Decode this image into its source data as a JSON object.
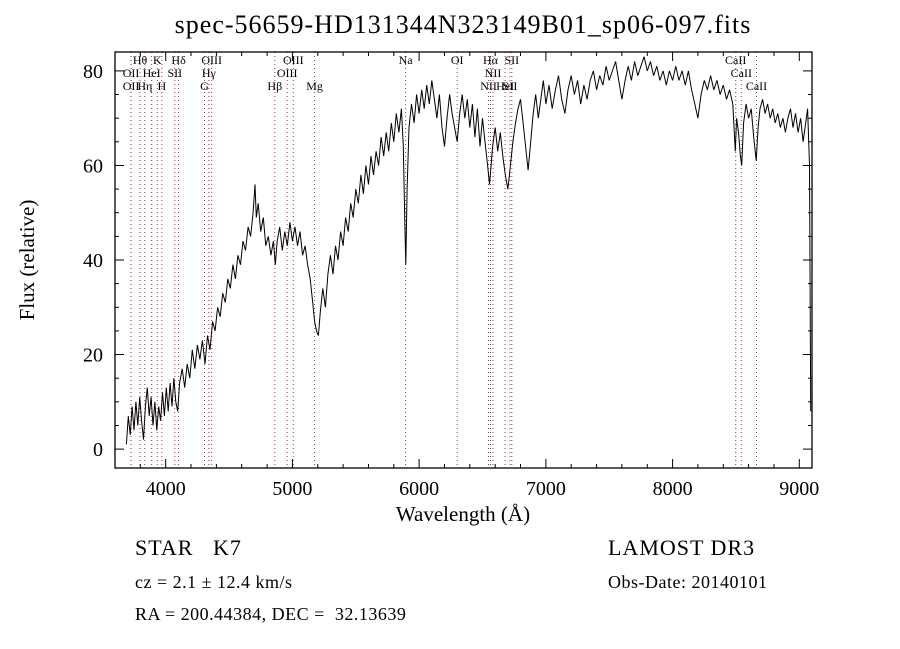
{
  "chart_data": {
    "type": "line",
    "title": "spec-56659-HD131344N323149B01_sp06-097.fits",
    "xlabel": "Wavelength (Å)",
    "ylabel": "Flux (relative)",
    "xlim": [
      3600,
      9100
    ],
    "ylim": [
      -4,
      84
    ],
    "xticks": [
      4000,
      5000,
      6000,
      7000,
      8000,
      9000
    ],
    "yticks": [
      0,
      20,
      40,
      60,
      80
    ],
    "x_minor_step": 200,
    "y_minor_step": 5,
    "grid": false,
    "legend": "none",
    "spectrum_color": "#000000",
    "line_marker_color": "#aa3333",
    "label_color": "#1a1a1a",
    "spectral_lines": [
      {
        "label": "OII",
        "wavelength": 3727,
        "row": 2
      },
      {
        "label": "OII",
        "wavelength": 3727,
        "row": 3
      },
      {
        "label": "Hθ",
        "wavelength": 3798,
        "row": 1
      },
      {
        "label": "Hη",
        "wavelength": 3835,
        "row": 3
      },
      {
        "label": "HeI",
        "wavelength": 3889,
        "row": 2
      },
      {
        "label": "K",
        "wavelength": 3934,
        "row": 1
      },
      {
        "label": "H",
        "wavelength": 3969,
        "row": 3
      },
      {
        "label": "SII",
        "wavelength": 4072,
        "row": 2
      },
      {
        "label": "Hδ",
        "wavelength": 4102,
        "row": 1
      },
      {
        "label": "G",
        "wavelength": 4306,
        "row": 3
      },
      {
        "label": "Hγ",
        "wavelength": 4340,
        "row": 2
      },
      {
        "label": "OIII",
        "wavelength": 4363,
        "row": 1
      },
      {
        "label": "Hβ",
        "wavelength": 4861,
        "row": 3
      },
      {
        "label": "OIII",
        "wavelength": 4959,
        "row": 2
      },
      {
        "label": "OIII",
        "wavelength": 5007,
        "row": 1
      },
      {
        "label": "Mg",
        "wavelength": 5175,
        "row": 3
      },
      {
        "label": "Na",
        "wavelength": 5893,
        "row": 1
      },
      {
        "label": "OI",
        "wavelength": 6300,
        "row": 1
      },
      {
        "label": "NII",
        "wavelength": 6548,
        "row": 3
      },
      {
        "label": "Hα",
        "wavelength": 6563,
        "row": 1
      },
      {
        "label": "NII",
        "wavelength": 6583,
        "row": 2
      },
      {
        "label": "HeI",
        "wavelength": 6678,
        "row": 3
      },
      {
        "label": "SII",
        "wavelength": 6717,
        "row": 3
      },
      {
        "label": "SII",
        "wavelength": 6731,
        "row": 1
      },
      {
        "label": "CaII",
        "wavelength": 8498,
        "row": 1
      },
      {
        "label": "CaII",
        "wavelength": 8542,
        "row": 2
      },
      {
        "label": "CaII",
        "wavelength": 8662,
        "row": 3
      }
    ],
    "series": [
      {
        "name": "flux",
        "points": [
          [
            3690,
            1
          ],
          [
            3705,
            7
          ],
          [
            3720,
            3
          ],
          [
            3735,
            9
          ],
          [
            3750,
            4
          ],
          [
            3765,
            10
          ],
          [
            3780,
            5
          ],
          [
            3795,
            11
          ],
          [
            3810,
            6
          ],
          [
            3825,
            2
          ],
          [
            3840,
            9
          ],
          [
            3855,
            13
          ],
          [
            3870,
            7
          ],
          [
            3885,
            11
          ],
          [
            3900,
            5
          ],
          [
            3915,
            10
          ],
          [
            3930,
            4
          ],
          [
            3945,
            9
          ],
          [
            3960,
            6
          ],
          [
            3975,
            12
          ],
          [
            3990,
            7
          ],
          [
            4005,
            13
          ],
          [
            4020,
            8
          ],
          [
            4035,
            14
          ],
          [
            4050,
            9
          ],
          [
            4065,
            15
          ],
          [
            4080,
            10
          ],
          [
            4095,
            8
          ],
          [
            4110,
            14
          ],
          [
            4130,
            17
          ],
          [
            4150,
            13
          ],
          [
            4170,
            18
          ],
          [
            4190,
            15
          ],
          [
            4210,
            21
          ],
          [
            4230,
            17
          ],
          [
            4250,
            22
          ],
          [
            4270,
            19
          ],
          [
            4290,
            23
          ],
          [
            4310,
            18
          ],
          [
            4330,
            24
          ],
          [
            4350,
            21
          ],
          [
            4370,
            27
          ],
          [
            4390,
            25
          ],
          [
            4410,
            30
          ],
          [
            4430,
            28
          ],
          [
            4450,
            33
          ],
          [
            4470,
            31
          ],
          [
            4490,
            36
          ],
          [
            4510,
            34
          ],
          [
            4530,
            39
          ],
          [
            4550,
            36
          ],
          [
            4570,
            41
          ],
          [
            4590,
            39
          ],
          [
            4610,
            44
          ],
          [
            4630,
            42
          ],
          [
            4650,
            47
          ],
          [
            4670,
            45
          ],
          [
            4690,
            50
          ],
          [
            4705,
            56
          ],
          [
            4715,
            49
          ],
          [
            4730,
            52
          ],
          [
            4750,
            46
          ],
          [
            4770,
            49
          ],
          [
            4790,
            43
          ],
          [
            4810,
            45
          ],
          [
            4830,
            41
          ],
          [
            4850,
            44
          ],
          [
            4865,
            39
          ],
          [
            4880,
            44
          ],
          [
            4900,
            47
          ],
          [
            4920,
            42
          ],
          [
            4940,
            46
          ],
          [
            4960,
            43
          ],
          [
            4980,
            48
          ],
          [
            5000,
            44
          ],
          [
            5020,
            47
          ],
          [
            5040,
            43
          ],
          [
            5060,
            46
          ],
          [
            5080,
            41
          ],
          [
            5100,
            43
          ],
          [
            5120,
            39
          ],
          [
            5140,
            36
          ],
          [
            5160,
            31
          ],
          [
            5175,
            27
          ],
          [
            5190,
            25
          ],
          [
            5205,
            24
          ],
          [
            5220,
            29
          ],
          [
            5240,
            34
          ],
          [
            5260,
            30
          ],
          [
            5280,
            37
          ],
          [
            5300,
            41
          ],
          [
            5320,
            37
          ],
          [
            5340,
            43
          ],
          [
            5360,
            40
          ],
          [
            5380,
            46
          ],
          [
            5400,
            43
          ],
          [
            5420,
            49
          ],
          [
            5440,
            46
          ],
          [
            5460,
            52
          ],
          [
            5480,
            49
          ],
          [
            5500,
            55
          ],
          [
            5520,
            52
          ],
          [
            5540,
            58
          ],
          [
            5560,
            54
          ],
          [
            5580,
            60
          ],
          [
            5600,
            56
          ],
          [
            5620,
            62
          ],
          [
            5640,
            58
          ],
          [
            5660,
            63
          ],
          [
            5680,
            60
          ],
          [
            5700,
            66
          ],
          [
            5720,
            62
          ],
          [
            5740,
            67
          ],
          [
            5760,
            63
          ],
          [
            5780,
            69
          ],
          [
            5800,
            65
          ],
          [
            5820,
            71
          ],
          [
            5840,
            67
          ],
          [
            5860,
            72
          ],
          [
            5875,
            64
          ],
          [
            5887,
            48
          ],
          [
            5895,
            39
          ],
          [
            5905,
            55
          ],
          [
            5920,
            68
          ],
          [
            5940,
            73
          ],
          [
            5960,
            69
          ],
          [
            5980,
            75
          ],
          [
            6000,
            71
          ],
          [
            6020,
            76
          ],
          [
            6040,
            72
          ],
          [
            6060,
            77
          ],
          [
            6080,
            73
          ],
          [
            6100,
            78
          ],
          [
            6120,
            74
          ],
          [
            6140,
            70
          ],
          [
            6160,
            75
          ],
          [
            6180,
            68
          ],
          [
            6200,
            64
          ],
          [
            6220,
            70
          ],
          [
            6240,
            75
          ],
          [
            6260,
            71
          ],
          [
            6280,
            68
          ],
          [
            6300,
            65
          ],
          [
            6320,
            71
          ],
          [
            6340,
            75
          ],
          [
            6360,
            70
          ],
          [
            6380,
            74
          ],
          [
            6400,
            68
          ],
          [
            6420,
            73
          ],
          [
            6440,
            66
          ],
          [
            6460,
            72
          ],
          [
            6480,
            64
          ],
          [
            6500,
            70
          ],
          [
            6520,
            65
          ],
          [
            6540,
            60
          ],
          [
            6555,
            56
          ],
          [
            6565,
            59
          ],
          [
            6580,
            64
          ],
          [
            6600,
            68
          ],
          [
            6620,
            63
          ],
          [
            6640,
            67
          ],
          [
            6660,
            62
          ],
          [
            6680,
            58
          ],
          [
            6700,
            55
          ],
          [
            6720,
            60
          ],
          [
            6740,
            65
          ],
          [
            6760,
            69
          ],
          [
            6780,
            72
          ],
          [
            6800,
            74
          ],
          [
            6820,
            69
          ],
          [
            6840,
            64
          ],
          [
            6860,
            59
          ],
          [
            6880,
            65
          ],
          [
            6900,
            71
          ],
          [
            6920,
            75
          ],
          [
            6940,
            70
          ],
          [
            6960,
            74
          ],
          [
            6980,
            78
          ],
          [
            7000,
            73
          ],
          [
            7025,
            77
          ],
          [
            7050,
            72
          ],
          [
            7075,
            76
          ],
          [
            7100,
            79
          ],
          [
            7125,
            74
          ],
          [
            7150,
            71
          ],
          [
            7175,
            76
          ],
          [
            7200,
            79
          ],
          [
            7225,
            75
          ],
          [
            7250,
            78
          ],
          [
            7275,
            73
          ],
          [
            7300,
            77
          ],
          [
            7325,
            74
          ],
          [
            7350,
            78
          ],
          [
            7375,
            80
          ],
          [
            7400,
            76
          ],
          [
            7425,
            79
          ],
          [
            7450,
            77
          ],
          [
            7475,
            81
          ],
          [
            7500,
            78
          ],
          [
            7525,
            80
          ],
          [
            7550,
            82
          ],
          [
            7575,
            78
          ],
          [
            7600,
            74
          ],
          [
            7625,
            78
          ],
          [
            7650,
            81
          ],
          [
            7675,
            78
          ],
          [
            7700,
            82
          ],
          [
            7725,
            79
          ],
          [
            7750,
            81
          ],
          [
            7775,
            83
          ],
          [
            7800,
            80
          ],
          [
            7825,
            82
          ],
          [
            7850,
            79
          ],
          [
            7875,
            81
          ],
          [
            7900,
            78
          ],
          [
            7925,
            80
          ],
          [
            7950,
            77
          ],
          [
            7975,
            80
          ],
          [
            8000,
            78
          ],
          [
            8025,
            81
          ],
          [
            8050,
            78
          ],
          [
            8075,
            80
          ],
          [
            8100,
            77
          ],
          [
            8125,
            80
          ],
          [
            8150,
            76
          ],
          [
            8175,
            73
          ],
          [
            8200,
            70
          ],
          [
            8225,
            75
          ],
          [
            8250,
            78
          ],
          [
            8275,
            76
          ],
          [
            8300,
            79
          ],
          [
            8325,
            76
          ],
          [
            8350,
            78
          ],
          [
            8375,
            75
          ],
          [
            8400,
            77
          ],
          [
            8425,
            74
          ],
          [
            8450,
            76
          ],
          [
            8475,
            73
          ],
          [
            8495,
            63
          ],
          [
            8505,
            70
          ],
          [
            8520,
            67
          ],
          [
            8535,
            62
          ],
          [
            8545,
            60
          ],
          [
            8560,
            69
          ],
          [
            8580,
            73
          ],
          [
            8600,
            70
          ],
          [
            8620,
            72
          ],
          [
            8640,
            66
          ],
          [
            8660,
            61
          ],
          [
            8675,
            68
          ],
          [
            8690,
            72
          ],
          [
            8710,
            74
          ],
          [
            8730,
            71
          ],
          [
            8750,
            73
          ],
          [
            8770,
            70
          ],
          [
            8790,
            72
          ],
          [
            8810,
            69
          ],
          [
            8830,
            71
          ],
          [
            8850,
            68
          ],
          [
            8870,
            70
          ],
          [
            8890,
            67
          ],
          [
            8910,
            70
          ],
          [
            8930,
            72
          ],
          [
            8950,
            68
          ],
          [
            8970,
            71
          ],
          [
            8990,
            67
          ],
          [
            9010,
            70
          ],
          [
            9030,
            65
          ],
          [
            9050,
            69
          ],
          [
            9065,
            72
          ],
          [
            9080,
            60
          ],
          [
            9090,
            8
          ]
        ]
      }
    ]
  },
  "footer": {
    "class_label": "STAR   K7",
    "survey": "LAMOST DR3",
    "cz": "cz = 2.1 ± 12.4 km/s",
    "obs_date": "Obs-Date: 20140101",
    "ra_dec": "RA = 200.44384, DEC =  32.13639"
  }
}
